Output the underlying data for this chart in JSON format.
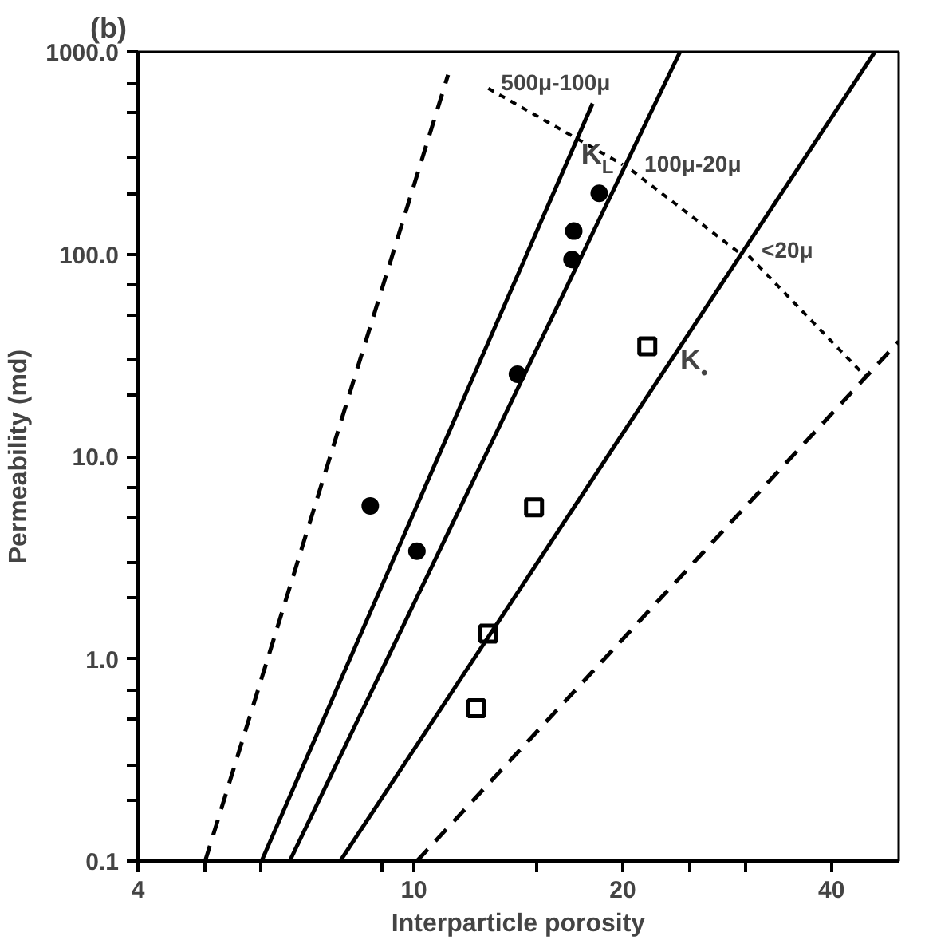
{
  "chart_data": {
    "type": "scatter",
    "title": "(b)",
    "xlabel": "Interparticle porosity",
    "ylabel": "Permeability (md)",
    "log": "xy",
    "xlim": [
      4,
      50
    ],
    "ylim": [
      0.1,
      1000
    ],
    "xticks": [
      4,
      {
        "value": 5,
        "label": null
      },
      {
        "value": 6,
        "label": null
      },
      {
        "value": 9,
        "label": null
      },
      10,
      {
        "value": 15,
        "label": null
      },
      20,
      {
        "value": 25,
        "label": null
      },
      {
        "value": 30,
        "label": null
      },
      40
    ],
    "yticks": [
      0.1,
      {
        "value": 0.2,
        "label": null
      },
      {
        "value": 0.3,
        "label": null
      },
      {
        "value": 0.5,
        "label": null
      },
      {
        "value": 0.7,
        "label": null
      },
      {
        "value": 1,
        "label": "1.0"
      },
      {
        "value": 2,
        "label": null
      },
      {
        "value": 3,
        "label": null
      },
      {
        "value": 5,
        "label": null
      },
      {
        "value": 7,
        "label": null
      },
      {
        "value": 10,
        "label": "10.0"
      },
      {
        "value": 20,
        "label": null
      },
      {
        "value": 30,
        "label": null
      },
      {
        "value": 50,
        "label": null
      },
      {
        "value": 70,
        "label": null
      },
      {
        "value": 100,
        "label": "100.0"
      },
      {
        "value": 200,
        "label": null
      },
      {
        "value": 300,
        "label": null
      },
      {
        "value": 500,
        "label": null
      },
      {
        "value": 700,
        "label": null
      },
      {
        "value": 1000,
        "label": "1000.0"
      }
    ],
    "grid": false,
    "series": [
      {
        "marker": "circle",
        "color": "#000000",
        "x": [
          8.65,
          10.1,
          14.1,
          16.9,
          17.0,
          18.5
        ],
        "values": [
          5.7,
          3.4,
          25.5,
          94,
          130,
          200
        ]
      },
      {
        "marker": "square",
        "color": "#000000",
        "x": [
          21.7,
          14.9,
          12.8,
          12.3
        ],
        "values": [
          35,
          5.6,
          1.33,
          0.57
        ]
      },
      {
        "type": "line",
        "line_style": "dashed",
        "color": "#000000",
        "x": [
          5.0,
          11.2
        ],
        "values": [
          0.1,
          770
        ]
      },
      {
        "type": "line",
        "line_style": "solid",
        "color": "#000000",
        "x": [
          6.03,
          18.1
        ],
        "values": [
          0.1,
          556
        ]
      },
      {
        "type": "line",
        "line_style": "solid",
        "color": "#000000",
        "x": [
          6.62,
          24.2
        ],
        "values": [
          0.1,
          1000
        ]
      },
      {
        "type": "line",
        "line_style": "solid",
        "color": "#000000",
        "x": [
          7.83,
          46.2
        ],
        "values": [
          0.1,
          1000
        ]
      },
      {
        "type": "line",
        "line_style": "dashed",
        "color": "#000000",
        "x": [
          10.1,
          50
        ],
        "values": [
          0.1,
          37
        ]
      },
      {
        "type": "line",
        "line_style": "dotted",
        "color": "#000000",
        "x": [
          12.8,
          20
        ],
        "values": [
          660,
          277
        ]
      },
      {
        "type": "line",
        "line_style": "dotted",
        "color": "#000000",
        "x": [
          20.6,
          29.4
        ],
        "values": [
          260,
          102
        ]
      },
      {
        "type": "line",
        "line_style": "dotted",
        "color": "#000000",
        "x": [
          30.4,
          44.7
        ],
        "values": [
          98,
          25
        ]
      }
    ],
    "annotations": [
      {
        "text": "500μ-100μ",
        "x": 12.8,
        "y": 660
      },
      {
        "text": "100μ-20μ",
        "x": 20.6,
        "y": 260
      },
      {
        "text": "<20μ",
        "x": 30.4,
        "y": 98
      },
      {
        "text": "K$_{L}$",
        "x": 16.7,
        "y": 292
      },
      {
        "text": "K$_{•}$",
        "x": 23.2,
        "y": 28
      }
    ]
  }
}
